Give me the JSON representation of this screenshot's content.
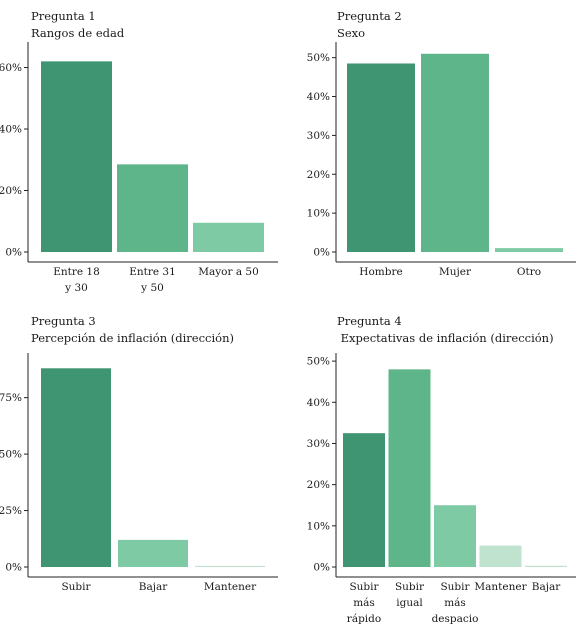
{
  "colors": {
    "dark": "#3f9471",
    "mid": "#5fb58a",
    "light": "#7ecaa5",
    "pale": "#bfe3cf",
    "axis": "#222222"
  },
  "panels": [
    {
      "question": "Pregunta 1",
      "subtitle": "Rangos de edad"
    },
    {
      "question": "Pregunta 2",
      "subtitle": "Sexo"
    },
    {
      "question": "Pregunta 3",
      "subtitle": "Percepción de inflación (dirección)"
    },
    {
      "question": "Pregunta 4",
      "subtitle": " Expectativas de inflación (dirección)"
    }
  ],
  "chart_data": [
    {
      "type": "bar",
      "title": "Pregunta 1",
      "subtitle": "Rangos de edad",
      "categories": [
        [
          "Entre 18",
          "y 30"
        ],
        [
          "Entre 31",
          "y 50"
        ],
        [
          "Mayor a 50"
        ]
      ],
      "values": [
        62,
        28.5,
        9.5
      ],
      "bar_colors": [
        "dark",
        "mid",
        "light"
      ],
      "ylim": [
        0,
        67
      ],
      "yticks": [
        0,
        20,
        40,
        60
      ],
      "ytick_labels": [
        "0%",
        "20%",
        "40%",
        "60%"
      ]
    },
    {
      "type": "bar",
      "title": "Pregunta 2",
      "subtitle": "Sexo",
      "categories": [
        [
          "Hombre"
        ],
        [
          "Mujer"
        ],
        [
          "Otro"
        ]
      ],
      "values": [
        48.5,
        51,
        1
      ],
      "bar_colors": [
        "dark",
        "mid",
        "light"
      ],
      "ylim": [
        0,
        53
      ],
      "yticks": [
        0,
        10,
        20,
        30,
        40,
        50
      ],
      "ytick_labels": [
        "0%",
        "10%",
        "20%",
        "30%",
        "40%",
        "50%"
      ]
    },
    {
      "type": "bar",
      "title": "Pregunta 3",
      "subtitle": "Percepción de inflación (dirección)",
      "categories": [
        [
          "Subir"
        ],
        [
          "Bajar"
        ],
        [
          "Mantener"
        ]
      ],
      "values": [
        88,
        12,
        0.5
      ],
      "bar_colors": [
        "dark",
        "light",
        "pale"
      ],
      "ylim": [
        0,
        93
      ],
      "yticks": [
        0,
        25,
        50,
        75
      ],
      "ytick_labels": [
        "0%",
        "25%",
        "50%",
        "75%"
      ]
    },
    {
      "type": "bar",
      "title": "Pregunta 4",
      "subtitle": "Expectativas de inflación (dirección)",
      "categories": [
        [
          "Subir",
          "más",
          "rápido"
        ],
        [
          "Subir",
          "igual"
        ],
        [
          "Subir",
          "más",
          "despacio"
        ],
        [
          "Mantener"
        ],
        [
          "Bajar"
        ]
      ],
      "values": [
        32.5,
        48,
        15,
        5.2,
        0.3
      ],
      "bar_colors": [
        "dark",
        "mid",
        "light",
        "pale",
        "pale"
      ],
      "ylim": [
        0,
        51
      ],
      "yticks": [
        0,
        10,
        20,
        30,
        40,
        50
      ],
      "ytick_labels": [
        "0%",
        "10%",
        "20%",
        "30%",
        "40%",
        "50%"
      ]
    }
  ]
}
